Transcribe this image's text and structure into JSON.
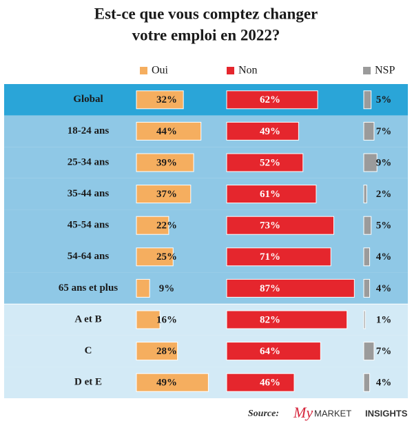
{
  "chart_data": {
    "type": "bar",
    "title": [
      "Est-ce que vous comptez changer",
      "votre emploi en 2022?"
    ],
    "categories": [
      "Global",
      "18-24 ans",
      "25-34 ans",
      "35-44 ans",
      "45-54 ans",
      "54-64 ans",
      "65 ans et plus",
      "A et B",
      "C",
      "D et E"
    ],
    "band_colors": [
      "#2aa5d8",
      "#8fc8e6",
      "#8fc8e6",
      "#8fc8e6",
      "#8fc8e6",
      "#8fc8e6",
      "#8fc8e6",
      "#d3eaf6",
      "#d3eaf6",
      "#d3eaf6"
    ],
    "series": [
      {
        "name": "Oui",
        "color": "#f5ae5f",
        "values": [
          32,
          44,
          39,
          37,
          22,
          25,
          9,
          16,
          28,
          49
        ],
        "value_labels": [
          "32%",
          "44%",
          "39%",
          "37%",
          "22%",
          "25%",
          "9%",
          "16%",
          "28%",
          "49%"
        ]
      },
      {
        "name": "Non",
        "color": "#e5262d",
        "values": [
          62,
          49,
          52,
          61,
          73,
          71,
          87,
          82,
          64,
          46
        ],
        "value_labels": [
          "62%",
          "49%",
          "52%",
          "61%",
          "73%",
          "71%",
          "87%",
          "82%",
          "64%",
          "46%"
        ]
      },
      {
        "name": "NSP",
        "color": "#9b9b9b",
        "values": [
          5,
          7,
          9,
          2,
          5,
          4,
          4,
          1,
          7,
          4
        ],
        "value_labels": [
          "5%",
          "7%",
          "9%",
          "2%",
          "5%",
          "4%",
          "4%",
          "1%",
          "7%",
          "4%"
        ]
      }
    ],
    "source": "Source:",
    "brand": [
      "My",
      "MARKET",
      "INSIGHTS"
    ]
  }
}
